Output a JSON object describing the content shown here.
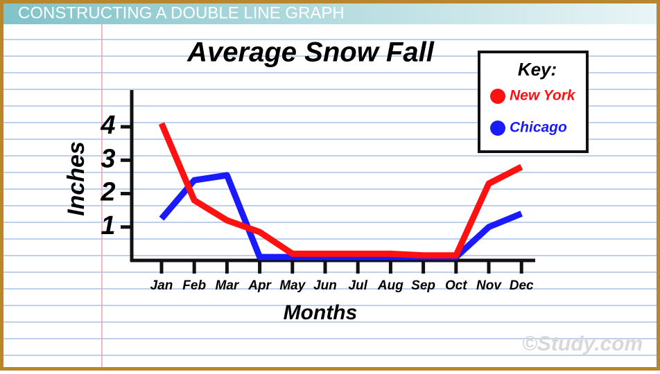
{
  "header": "CONSTRUCTING A DOUBLE LINE GRAPH",
  "watermark": "©Study.com",
  "chart_data": {
    "type": "line",
    "title": "Average Snow Fall",
    "x_label": "Months",
    "y_label": "Inches",
    "legend_title": "Key:",
    "legend": "top-right",
    "categories": [
      "Jan",
      "Feb",
      "Mar",
      "Apr",
      "May",
      "Jun",
      "Jul",
      "Aug",
      "Sep",
      "Oct",
      "Nov",
      "Dec"
    ],
    "series": [
      {
        "name": "New York",
        "color": "#ff1111",
        "values": [
          4.1,
          1.8,
          1.2,
          0.85,
          0.2,
          0.2,
          0.2,
          0.2,
          0.15,
          0.15,
          2.3,
          2.8
        ]
      },
      {
        "name": "Chicago",
        "color": "#1a1aff",
        "values": [
          1.25,
          2.4,
          2.55,
          0.1,
          0.1,
          0.1,
          0.1,
          0.1,
          0.1,
          0.1,
          1.0,
          1.4
        ]
      }
    ],
    "ylim": [
      0,
      5.1
    ],
    "yticks": [
      1,
      2,
      3,
      4
    ]
  }
}
